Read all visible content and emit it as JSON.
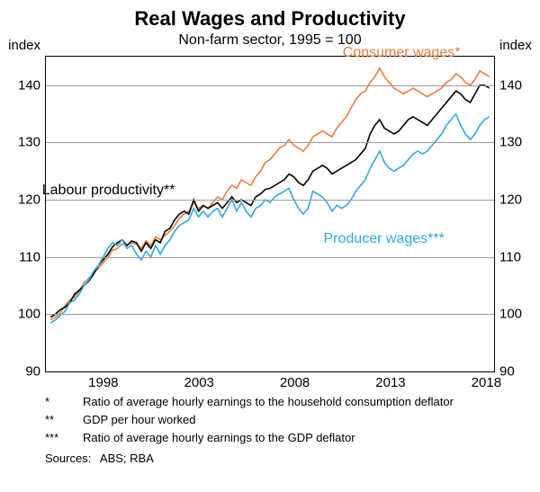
{
  "chart": {
    "type": "line",
    "title": "Real Wages and Productivity",
    "subtitle": "Non-farm sector, 1995 = 100",
    "title_fontsize": 22,
    "subtitle_fontsize": 16,
    "background_color": "#ffffff",
    "border_color": "#000000",
    "grid_color": "#9c9c9c",
    "line_width": 1.6,
    "y_axis": {
      "label_left": "index",
      "label_right": "index",
      "min": 90,
      "max": 145,
      "ticks": [
        90,
        100,
        110,
        120,
        130,
        140
      ],
      "fontsize": 15
    },
    "x_axis": {
      "min": 1995,
      "max": 2018.5,
      "ticks": [
        1998,
        2003,
        2008,
        2013,
        2018
      ],
      "fontsize": 15
    },
    "series": [
      {
        "name": "Consumer wages*",
        "label": "Consumer wages*",
        "color": "#e87e3e",
        "label_pos": {
          "x": 2010.5,
          "y": 147
        },
        "data": [
          [
            1995.25,
            99.0
          ],
          [
            1995.5,
            99.5
          ],
          [
            1995.75,
            100.2
          ],
          [
            1996.0,
            101.5
          ],
          [
            1996.25,
            102.5
          ],
          [
            1996.5,
            103.0
          ],
          [
            1996.75,
            104.0
          ],
          [
            1997.0,
            105.5
          ],
          [
            1997.25,
            106.3
          ],
          [
            1997.5,
            107.2
          ],
          [
            1997.75,
            108.0
          ],
          [
            1998.0,
            109.0
          ],
          [
            1998.25,
            110.0
          ],
          [
            1998.5,
            111.2
          ],
          [
            1998.75,
            111.5
          ],
          [
            1999.0,
            112.3
          ],
          [
            1999.25,
            112.0
          ],
          [
            1999.5,
            112.5
          ],
          [
            1999.75,
            112.2
          ],
          [
            2000.0,
            111.5
          ],
          [
            2000.25,
            112.8
          ],
          [
            2000.5,
            112.0
          ],
          [
            2000.75,
            113.5
          ],
          [
            2001.0,
            113.0
          ],
          [
            2001.25,
            113.8
          ],
          [
            2001.5,
            114.5
          ],
          [
            2001.75,
            115.5
          ],
          [
            2002.0,
            116.8
          ],
          [
            2002.25,
            117.5
          ],
          [
            2002.5,
            118.0
          ],
          [
            2002.75,
            119.5
          ],
          [
            2003.0,
            118.5
          ],
          [
            2003.25,
            119.0
          ],
          [
            2003.5,
            118.5
          ],
          [
            2003.75,
            119.5
          ],
          [
            2004.0,
            120.5
          ],
          [
            2004.25,
            120.0
          ],
          [
            2004.5,
            121.5
          ],
          [
            2004.75,
            122.5
          ],
          [
            2005.0,
            122.0
          ],
          [
            2005.25,
            123.5
          ],
          [
            2005.5,
            123.0
          ],
          [
            2005.75,
            122.5
          ],
          [
            2006.0,
            124.0
          ],
          [
            2006.25,
            125.0
          ],
          [
            2006.5,
            126.5
          ],
          [
            2006.75,
            127.0
          ],
          [
            2007.0,
            128.0
          ],
          [
            2007.25,
            129.0
          ],
          [
            2007.5,
            129.5
          ],
          [
            2007.75,
            130.5
          ],
          [
            2008.0,
            129.5
          ],
          [
            2008.25,
            129.0
          ],
          [
            2008.5,
            128.5
          ],
          [
            2008.75,
            129.5
          ],
          [
            2009.0,
            131.0
          ],
          [
            2009.25,
            131.5
          ],
          [
            2009.5,
            132.0
          ],
          [
            2009.75,
            131.5
          ],
          [
            2010.0,
            131.0
          ],
          [
            2010.25,
            132.5
          ],
          [
            2010.5,
            133.5
          ],
          [
            2010.75,
            134.5
          ],
          [
            2011.0,
            136.0
          ],
          [
            2011.25,
            137.5
          ],
          [
            2011.5,
            138.5
          ],
          [
            2011.75,
            139.0
          ],
          [
            2012.0,
            140.5
          ],
          [
            2012.25,
            141.5
          ],
          [
            2012.5,
            143.0
          ],
          [
            2012.75,
            141.5
          ],
          [
            2013.0,
            140.5
          ],
          [
            2013.25,
            139.5
          ],
          [
            2013.5,
            139.0
          ],
          [
            2013.75,
            138.5
          ],
          [
            2014.0,
            139.0
          ],
          [
            2014.25,
            139.5
          ],
          [
            2014.5,
            139.0
          ],
          [
            2014.75,
            138.5
          ],
          [
            2015.0,
            138.0
          ],
          [
            2015.25,
            138.5
          ],
          [
            2015.5,
            139.0
          ],
          [
            2015.75,
            139.5
          ],
          [
            2016.0,
            140.5
          ],
          [
            2016.25,
            141.0
          ],
          [
            2016.5,
            142.0
          ],
          [
            2016.75,
            141.5
          ],
          [
            2017.0,
            140.5
          ],
          [
            2017.25,
            140.0
          ],
          [
            2017.5,
            141.0
          ],
          [
            2017.75,
            142.5
          ],
          [
            2018.0,
            142.0
          ],
          [
            2018.25,
            141.5
          ]
        ]
      },
      {
        "name": "Labour productivity**",
        "label": "Labour productivity**",
        "color": "#000000",
        "label_pos": {
          "x": 1994.8,
          "y": 123
        },
        "data": [
          [
            1995.25,
            99.5
          ],
          [
            1995.5,
            100.0
          ],
          [
            1995.75,
            100.8
          ],
          [
            1996.0,
            101.2
          ],
          [
            1996.25,
            102.0
          ],
          [
            1996.5,
            103.5
          ],
          [
            1996.75,
            104.2
          ],
          [
            1997.0,
            105.0
          ],
          [
            1997.25,
            105.8
          ],
          [
            1997.5,
            107.0
          ],
          [
            1997.75,
            108.5
          ],
          [
            1998.0,
            109.5
          ],
          [
            1998.25,
            110.5
          ],
          [
            1998.5,
            111.8
          ],
          [
            1998.75,
            112.5
          ],
          [
            1999.0,
            113.0
          ],
          [
            1999.25,
            112.0
          ],
          [
            1999.5,
            112.8
          ],
          [
            1999.75,
            112.5
          ],
          [
            2000.0,
            111.0
          ],
          [
            2000.25,
            112.5
          ],
          [
            2000.5,
            111.5
          ],
          [
            2000.75,
            113.0
          ],
          [
            2001.0,
            112.5
          ],
          [
            2001.25,
            114.5
          ],
          [
            2001.5,
            115.0
          ],
          [
            2001.75,
            116.5
          ],
          [
            2002.0,
            117.5
          ],
          [
            2002.25,
            118.0
          ],
          [
            2002.5,
            117.5
          ],
          [
            2002.75,
            120.0
          ],
          [
            2003.0,
            118.0
          ],
          [
            2003.25,
            119.0
          ],
          [
            2003.5,
            118.5
          ],
          [
            2003.75,
            119.0
          ],
          [
            2004.0,
            119.5
          ],
          [
            2004.25,
            118.5
          ],
          [
            2004.5,
            119.5
          ],
          [
            2004.75,
            120.5
          ],
          [
            2005.0,
            119.5
          ],
          [
            2005.25,
            120.0
          ],
          [
            2005.5,
            119.5
          ],
          [
            2005.75,
            119.0
          ],
          [
            2006.0,
            120.5
          ],
          [
            2006.25,
            121.0
          ],
          [
            2006.5,
            121.8
          ],
          [
            2006.75,
            122.0
          ],
          [
            2007.0,
            122.5
          ],
          [
            2007.25,
            123.0
          ],
          [
            2007.5,
            123.5
          ],
          [
            2007.75,
            124.5
          ],
          [
            2008.0,
            124.0
          ],
          [
            2008.25,
            123.0
          ],
          [
            2008.5,
            122.5
          ],
          [
            2008.75,
            123.5
          ],
          [
            2009.0,
            125.0
          ],
          [
            2009.25,
            125.5
          ],
          [
            2009.5,
            126.0
          ],
          [
            2009.75,
            125.5
          ],
          [
            2010.0,
            124.5
          ],
          [
            2010.25,
            125.0
          ],
          [
            2010.5,
            125.5
          ],
          [
            2010.75,
            126.0
          ],
          [
            2011.0,
            126.5
          ],
          [
            2011.25,
            127.0
          ],
          [
            2011.5,
            128.0
          ],
          [
            2011.75,
            129.0
          ],
          [
            2012.0,
            131.5
          ],
          [
            2012.25,
            133.0
          ],
          [
            2012.5,
            134.0
          ],
          [
            2012.75,
            132.5
          ],
          [
            2013.0,
            132.0
          ],
          [
            2013.25,
            131.5
          ],
          [
            2013.5,
            132.0
          ],
          [
            2013.75,
            133.0
          ],
          [
            2014.0,
            134.0
          ],
          [
            2014.25,
            134.5
          ],
          [
            2014.5,
            134.0
          ],
          [
            2014.75,
            133.5
          ],
          [
            2015.0,
            133.0
          ],
          [
            2015.25,
            134.0
          ],
          [
            2015.5,
            135.0
          ],
          [
            2015.75,
            136.0
          ],
          [
            2016.0,
            137.0
          ],
          [
            2016.25,
            138.0
          ],
          [
            2016.5,
            139.0
          ],
          [
            2016.75,
            138.5
          ],
          [
            2017.0,
            137.5
          ],
          [
            2017.25,
            137.0
          ],
          [
            2017.5,
            138.5
          ],
          [
            2017.75,
            140.0
          ],
          [
            2018.0,
            140.0
          ],
          [
            2018.25,
            139.5
          ]
        ]
      },
      {
        "name": "Producer wages***",
        "label": "Producer wages***",
        "color": "#2fa9e0",
        "label_pos": {
          "x": 2009.5,
          "y": 114.5
        },
        "data": [
          [
            1995.25,
            98.5
          ],
          [
            1995.5,
            99.0
          ],
          [
            1995.75,
            99.8
          ],
          [
            1996.0,
            100.5
          ],
          [
            1996.25,
            102.0
          ],
          [
            1996.5,
            102.5
          ],
          [
            1996.75,
            103.5
          ],
          [
            1997.0,
            105.0
          ],
          [
            1997.25,
            106.0
          ],
          [
            1997.5,
            107.5
          ],
          [
            1997.75,
            108.5
          ],
          [
            1998.0,
            110.0
          ],
          [
            1998.25,
            111.5
          ],
          [
            1998.5,
            112.5
          ],
          [
            1998.75,
            112.0
          ],
          [
            1999.0,
            113.0
          ],
          [
            1999.25,
            111.5
          ],
          [
            1999.5,
            112.0
          ],
          [
            1999.75,
            110.5
          ],
          [
            2000.0,
            109.5
          ],
          [
            2000.25,
            111.0
          ],
          [
            2000.5,
            110.0
          ],
          [
            2000.75,
            112.0
          ],
          [
            2001.0,
            110.5
          ],
          [
            2001.25,
            112.0
          ],
          [
            2001.5,
            113.0
          ],
          [
            2001.75,
            114.5
          ],
          [
            2002.0,
            115.5
          ],
          [
            2002.25,
            116.0
          ],
          [
            2002.5,
            116.5
          ],
          [
            2002.75,
            118.5
          ],
          [
            2003.0,
            117.0
          ],
          [
            2003.25,
            118.0
          ],
          [
            2003.5,
            117.0
          ],
          [
            2003.75,
            118.0
          ],
          [
            2004.0,
            118.5
          ],
          [
            2004.25,
            117.0
          ],
          [
            2004.5,
            118.5
          ],
          [
            2004.75,
            120.0
          ],
          [
            2005.0,
            118.0
          ],
          [
            2005.25,
            119.5
          ],
          [
            2005.5,
            118.0
          ],
          [
            2005.75,
            117.0
          ],
          [
            2006.0,
            118.5
          ],
          [
            2006.25,
            119.0
          ],
          [
            2006.5,
            120.0
          ],
          [
            2006.75,
            119.5
          ],
          [
            2007.0,
            120.5
          ],
          [
            2007.25,
            121.0
          ],
          [
            2007.5,
            121.5
          ],
          [
            2007.75,
            122.0
          ],
          [
            2008.0,
            120.0
          ],
          [
            2008.25,
            118.5
          ],
          [
            2008.5,
            117.5
          ],
          [
            2008.75,
            118.5
          ],
          [
            2009.0,
            121.5
          ],
          [
            2009.25,
            121.0
          ],
          [
            2009.5,
            120.5
          ],
          [
            2009.75,
            119.5
          ],
          [
            2010.0,
            118.0
          ],
          [
            2010.25,
            119.0
          ],
          [
            2010.5,
            118.5
          ],
          [
            2010.75,
            119.0
          ],
          [
            2011.0,
            120.0
          ],
          [
            2011.25,
            121.5
          ],
          [
            2011.5,
            122.5
          ],
          [
            2011.75,
            123.5
          ],
          [
            2012.0,
            125.5
          ],
          [
            2012.25,
            127.0
          ],
          [
            2012.5,
            128.5
          ],
          [
            2012.75,
            126.5
          ],
          [
            2013.0,
            125.5
          ],
          [
            2013.25,
            125.0
          ],
          [
            2013.5,
            125.5
          ],
          [
            2013.75,
            126.0
          ],
          [
            2014.0,
            127.0
          ],
          [
            2014.25,
            128.0
          ],
          [
            2014.5,
            128.5
          ],
          [
            2014.75,
            128.0
          ],
          [
            2015.0,
            128.5
          ],
          [
            2015.25,
            129.5
          ],
          [
            2015.5,
            130.5
          ],
          [
            2015.75,
            131.5
          ],
          [
            2016.0,
            133.0
          ],
          [
            2016.25,
            134.0
          ],
          [
            2016.5,
            135.0
          ],
          [
            2016.75,
            133.0
          ],
          [
            2017.0,
            131.5
          ],
          [
            2017.25,
            130.5
          ],
          [
            2017.5,
            131.5
          ],
          [
            2017.75,
            133.0
          ],
          [
            2018.0,
            134.0
          ],
          [
            2018.25,
            134.5
          ]
        ]
      }
    ],
    "footnotes": [
      {
        "marker": "*",
        "text": "Ratio of average hourly earnings to the household consumption deflator"
      },
      {
        "marker": "**",
        "text": "GDP per hour worked"
      },
      {
        "marker": "***",
        "text": "Ratio of average hourly earnings to the GDP deflator"
      }
    ],
    "sources": {
      "label": "Sources:",
      "text": "ABS; RBA"
    }
  }
}
